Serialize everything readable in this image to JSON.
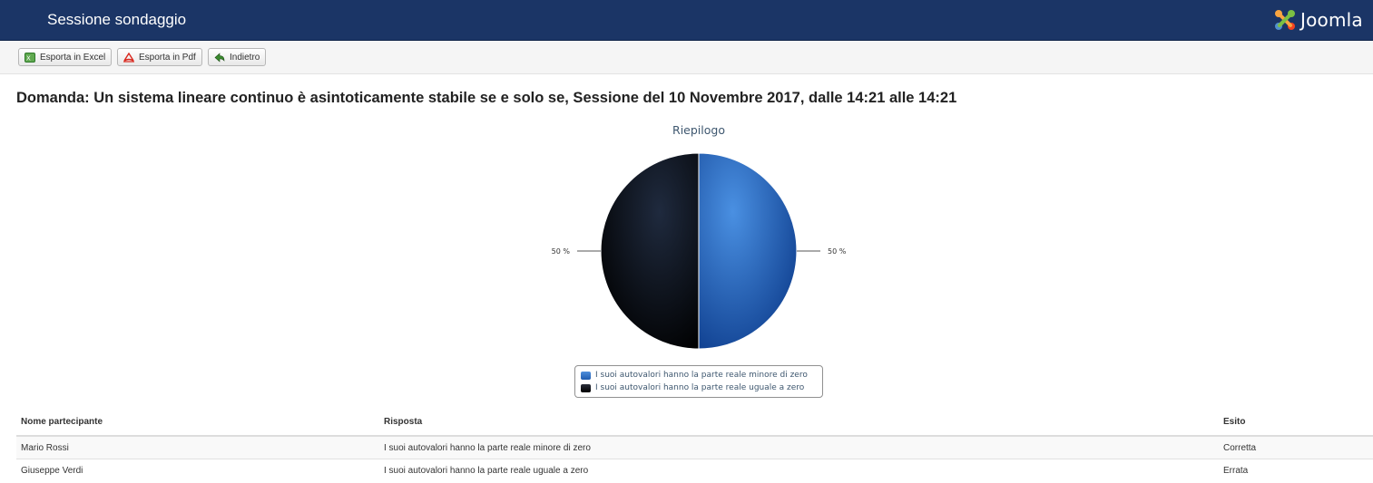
{
  "header": {
    "title": "Sessione sondaggio",
    "logo_text": "Joomla"
  },
  "toolbar": {
    "buttons": [
      {
        "label": "Esporta in Excel",
        "icon": "excel-icon"
      },
      {
        "label": "Esporta in Pdf",
        "icon": "pdf-icon"
      },
      {
        "label": "Indietro",
        "icon": "back-arrow-icon"
      }
    ]
  },
  "question": "Domanda: Un sistema lineare continuo è asintoticamente stabile se e solo se, Sessione del 10 Novembre 2017, dalle 14:21 alle 14:21",
  "chart_data": {
    "type": "pie",
    "title": "Riepilogo",
    "legend_position": "bottom",
    "slices": [
      {
        "name": "I suoi autovalori hanno la parte reale minore di zero",
        "value": 50,
        "label": "50 %",
        "color": "#2a6fcc"
      },
      {
        "name": "I suoi autovalori hanno la parte reale uguale a zero",
        "value": 50,
        "label": "50 %",
        "color": "#0b0f18"
      }
    ]
  },
  "table": {
    "headers": [
      "Nome partecipante",
      "Risposta",
      "Esito"
    ],
    "rows": [
      [
        "Mario Rossi",
        "I suoi autovalori hanno la parte reale minore di zero",
        "Corretta"
      ],
      [
        "Giuseppe Verdi",
        "I suoi autovalori hanno la parte reale uguale a zero",
        "Errata"
      ]
    ]
  },
  "colors": {
    "header_bg": "#1b3566",
    "chart_text": "#3e576f"
  }
}
